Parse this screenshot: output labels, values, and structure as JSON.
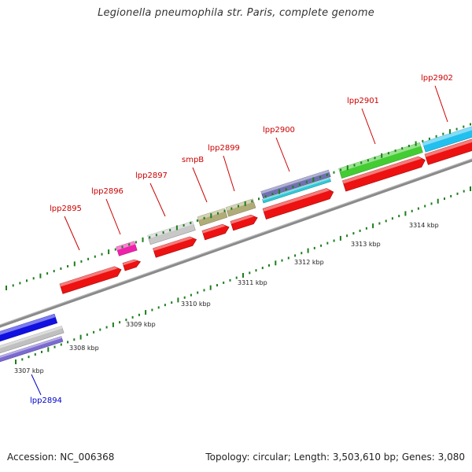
{
  "title": "Legionella pneumophila str. Paris, complete genome",
  "footer": {
    "accession": "Accession: NC_006368",
    "stats": "Topology: circular; Length: 3,503,610 bp; Genes: 3,080"
  },
  "colors": {
    "backbone": "#8a8a8a",
    "tick": "#1e7d1e",
    "forward_label": "#cc0000",
    "reverse_label": "#0000cc"
  },
  "scale": [
    "3307 kbp",
    "3308 kbp",
    "3309 kbp",
    "3310 kbp",
    "3311 kbp",
    "3312 kbp",
    "3313 kbp",
    "3314 kbp"
  ],
  "genes": [
    {
      "name": "lpp2894",
      "label": "lpp2894",
      "strand": "reverse",
      "color": "#1010e0"
    },
    {
      "name": "lpp2895",
      "label": "lpp2895",
      "strand": "forward",
      "color": "#ee1111"
    },
    {
      "name": "lpp2896",
      "label": "lpp2896",
      "strand": "forward",
      "color": "#ee1111"
    },
    {
      "name": "lpp2897",
      "label": "lpp2897",
      "strand": "forward",
      "color": "#ee1111"
    },
    {
      "name": "smpB",
      "label": "smpB",
      "strand": "forward",
      "color": "#ee1111"
    },
    {
      "name": "lpp2899",
      "label": "lpp2899",
      "strand": "forward",
      "color": "#ee1111"
    },
    {
      "name": "lpp2900",
      "label": "lpp2900",
      "strand": "forward",
      "color": "#ee1111"
    },
    {
      "name": "lpp2901",
      "label": "lpp2901",
      "strand": "forward",
      "color": "#ee1111"
    },
    {
      "name": "lpp2902",
      "label": "lpp2902",
      "strand": "forward",
      "color": "#ee1111"
    }
  ],
  "cog_blocks": [
    {
      "gene": "lpp2894",
      "color": "#c0c0c0"
    },
    {
      "gene": "lpp2894",
      "color": "#7a6ad0"
    },
    {
      "gene": "lpp2896",
      "color": "#ee22aa"
    },
    {
      "gene": "lpp2897",
      "color": "#c8c8c8"
    },
    {
      "gene": "smpB",
      "color": "#b0ac78"
    },
    {
      "gene": "lpp2899",
      "color": "#b0ac78"
    },
    {
      "gene": "lpp2900",
      "color": "#7070b0"
    },
    {
      "gene": "lpp2900",
      "color": "#30c8d8"
    },
    {
      "gene": "lpp2901",
      "color": "#44cc33"
    },
    {
      "gene": "lpp2902",
      "color": "#22c0ee"
    }
  ]
}
